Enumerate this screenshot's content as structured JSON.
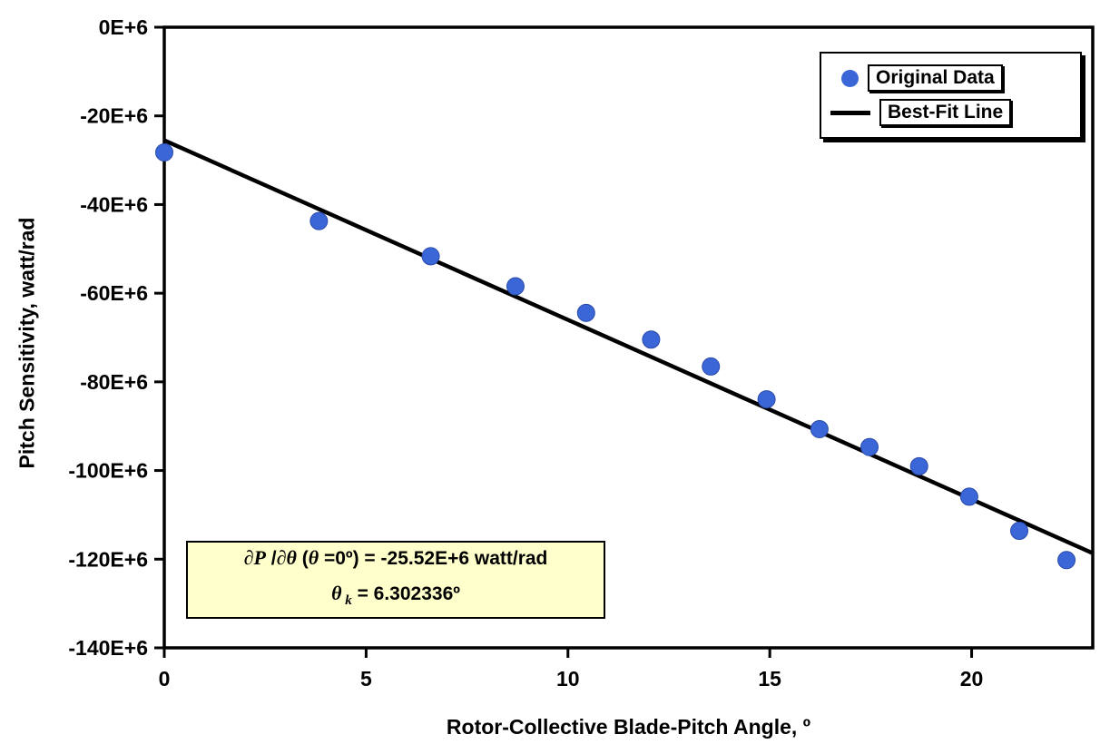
{
  "chart_data": {
    "type": "scatter",
    "title": "",
    "xlabel": "Rotor-Collective Blade-Pitch Angle, º",
    "ylabel": "Pitch Sensitivity, watt/rad",
    "xlim": [
      0,
      23
    ],
    "ylim_e6": [
      -140,
      0
    ],
    "grid": "off",
    "x_ticks": [
      {
        "v": 0,
        "label": "0"
      },
      {
        "v": 5,
        "label": "5"
      },
      {
        "v": 10,
        "label": "10"
      },
      {
        "v": 15,
        "label": "15"
      },
      {
        "v": 20,
        "label": "20"
      }
    ],
    "y_ticks": [
      {
        "v": 0,
        "label": "0E+6"
      },
      {
        "v": -20,
        "label": "-20E+6"
      },
      {
        "v": -40,
        "label": "-40E+6"
      },
      {
        "v": -60,
        "label": "-60E+6"
      },
      {
        "v": -80,
        "label": "-80E+6"
      },
      {
        "v": -100,
        "label": "-100E+6"
      },
      {
        "v": -120,
        "label": "-120E+6"
      },
      {
        "v": -140,
        "label": "-140E+6"
      }
    ],
    "series": [
      {
        "name": "Original Data",
        "type": "scatter",
        "color": "#3A66D8",
        "edge_color": "#2B4BA8",
        "x": [
          0.0,
          3.83,
          6.6,
          8.7,
          10.45,
          12.06,
          13.54,
          14.92,
          16.23,
          17.47,
          18.7,
          19.94,
          21.18,
          22.35
        ],
        "y_e6": [
          -28.24,
          -43.73,
          -51.66,
          -58.44,
          -64.44,
          -70.46,
          -76.53,
          -83.94,
          -90.67,
          -94.71,
          -99.04,
          -105.9,
          -113.6,
          -120.2
        ]
      },
      {
        "name": "Best-Fit Line",
        "type": "line",
        "color": "#000000",
        "fit": {
          "intercept_e6": -25.52,
          "theta_k_deg": 6.302336,
          "x_start": 0,
          "x_end": 23
        }
      }
    ],
    "legend": {
      "position": "top-right",
      "items": [
        {
          "label": "Original Data",
          "marker": "dot"
        },
        {
          "label": "Best-Fit Line",
          "marker": "line"
        }
      ]
    },
    "annotation": {
      "lines": [
        {
          "parts": [
            {
              "t": "∂P",
              "italic": true
            },
            {
              "t": " /",
              "italic": false
            },
            {
              "t": "∂θ",
              "italic": true
            },
            {
              "t": " (",
              "italic": false
            },
            {
              "t": "θ",
              "italic": true
            },
            {
              "t": " =0º) = -25.52E+6 watt/rad",
              "italic": false
            }
          ]
        },
        {
          "parts": [
            {
              "t": "θ",
              "italic": true
            },
            {
              "t": " k",
              "italic": true,
              "sub": true
            },
            {
              "t": " = 6.302336º",
              "italic": false
            }
          ]
        }
      ]
    }
  }
}
